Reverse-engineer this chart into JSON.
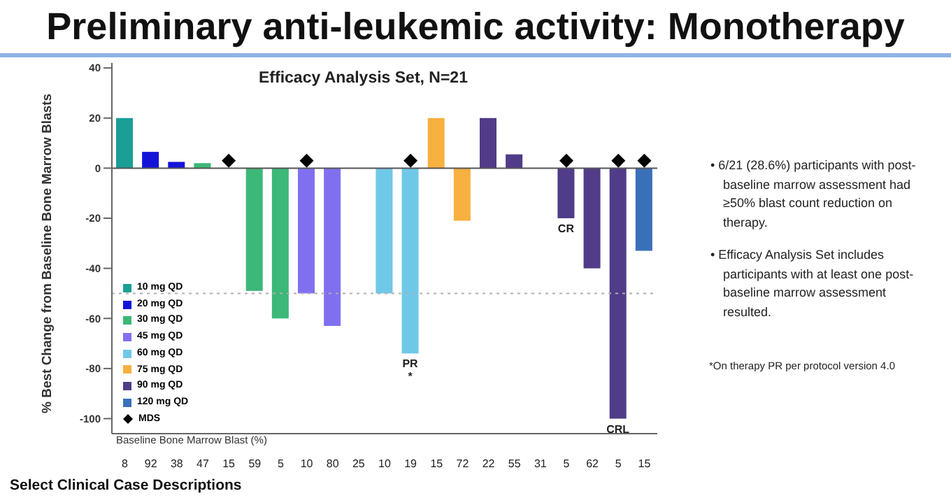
{
  "chart_data": {
    "type": "bar",
    "title": "Preliminary anti-leukemic activity: Monotherapy",
    "subtitle": "Efficacy Analysis Set, N=21",
    "xlabel": "Baseline Bone Marrow Blast (%)",
    "ylabel": "% Best Change from Baseline Bone Marrow Blasts",
    "categories": [
      "8",
      "92",
      "38",
      "47",
      "15",
      "59",
      "5",
      "10",
      "80",
      "25",
      "10",
      "19",
      "15",
      "72",
      "22",
      "55",
      "31",
      "5",
      "62",
      "5",
      "15"
    ],
    "stacked": true,
    "series": [
      {
        "name": "10 mg QD",
        "color": "#1a9e96",
        "values": [
          20,
          null,
          null,
          null,
          null,
          null,
          null,
          null,
          null,
          null,
          null,
          null,
          null,
          null,
          null,
          null,
          null,
          null,
          null,
          null,
          null
        ]
      },
      {
        "name": "20 mg QD",
        "color": "#1414d8",
        "values": [
          null,
          6.5,
          2.5,
          null,
          null,
          null,
          null,
          null,
          null,
          null,
          null,
          null,
          null,
          null,
          null,
          null,
          null,
          null,
          null,
          null,
          null
        ]
      },
      {
        "name": "30 mg QD",
        "color": "#3cb878",
        "values": [
          null,
          null,
          null,
          2,
          null,
          -49,
          -60,
          null,
          null,
          null,
          null,
          null,
          null,
          null,
          null,
          null,
          null,
          null,
          null,
          null,
          null
        ]
      },
      {
        "name": "45 mg QD",
        "color": "#8070f0",
        "values": [
          null,
          null,
          null,
          null,
          null,
          null,
          null,
          -50,
          -63,
          null,
          null,
          null,
          null,
          null,
          null,
          null,
          null,
          null,
          null,
          null,
          null
        ]
      },
      {
        "name": "60 mg QD",
        "color": "#70c8e8",
        "values": [
          null,
          null,
          null,
          null,
          null,
          null,
          null,
          null,
          null,
          null,
          -50,
          -74,
          null,
          null,
          null,
          null,
          null,
          null,
          null,
          null,
          null
        ],
        "value_labels": [
          null,
          null,
          null,
          null,
          null,
          null,
          null,
          null,
          null,
          null,
          null,
          "PR\n*",
          null,
          null,
          null,
          null,
          null,
          null,
          null,
          null,
          null
        ]
      },
      {
        "name": "75 mg QD",
        "color": "#f8b040",
        "values": [
          null,
          null,
          null,
          null,
          null,
          null,
          null,
          null,
          null,
          null,
          null,
          null,
          20,
          -21,
          null,
          null,
          null,
          null,
          null,
          null,
          null
        ]
      },
      {
        "name": "90 mg QD",
        "color": "#503c88",
        "values": [
          null,
          null,
          null,
          null,
          null,
          null,
          null,
          null,
          null,
          null,
          null,
          null,
          null,
          null,
          20,
          5.5,
          null,
          -20,
          -40,
          -100,
          null
        ],
        "value_labels": [
          null,
          null,
          null,
          null,
          null,
          null,
          null,
          null,
          null,
          null,
          null,
          null,
          null,
          null,
          null,
          null,
          null,
          "CR",
          null,
          "CRL",
          null
        ]
      },
      {
        "name": "120 mg QD",
        "color": "#3a70b8",
        "values": [
          null,
          null,
          null,
          null,
          null,
          null,
          null,
          null,
          null,
          null,
          null,
          null,
          null,
          null,
          null,
          null,
          null,
          null,
          null,
          null,
          -33
        ]
      },
      {
        "name": "MDS",
        "type": "scatter",
        "color": "#000000",
        "marker": "diamond",
        "values": [
          null,
          null,
          null,
          null,
          3,
          null,
          null,
          3,
          null,
          null,
          null,
          3,
          null,
          null,
          null,
          null,
          null,
          3,
          null,
          3,
          3
        ]
      }
    ],
    "ylim": [
      -106,
      42
    ],
    "yticks": [
      -100,
      -80,
      -60,
      -40,
      -20,
      0,
      20,
      40
    ],
    "ref_lines": [
      {
        "axis": "y",
        "value": 0,
        "color": "#555555",
        "line_style": "solid"
      },
      {
        "axis": "y",
        "value": -50,
        "color": "#b0b0b0",
        "line_style": "dotted"
      }
    ],
    "legend": "bottom left",
    "grid": false,
    "annotations": [
      "• 6/21 (28.6%) participants with post-baseline marrow assessment had ≥50% blast count reduction on therapy.",
      "• Efficacy Analysis Set includes participants with at least one post-baseline marrow assessment resulted.",
      "*On therapy PR per protocol version 4.0",
      "Select Clinical Case Descriptions"
    ]
  }
}
